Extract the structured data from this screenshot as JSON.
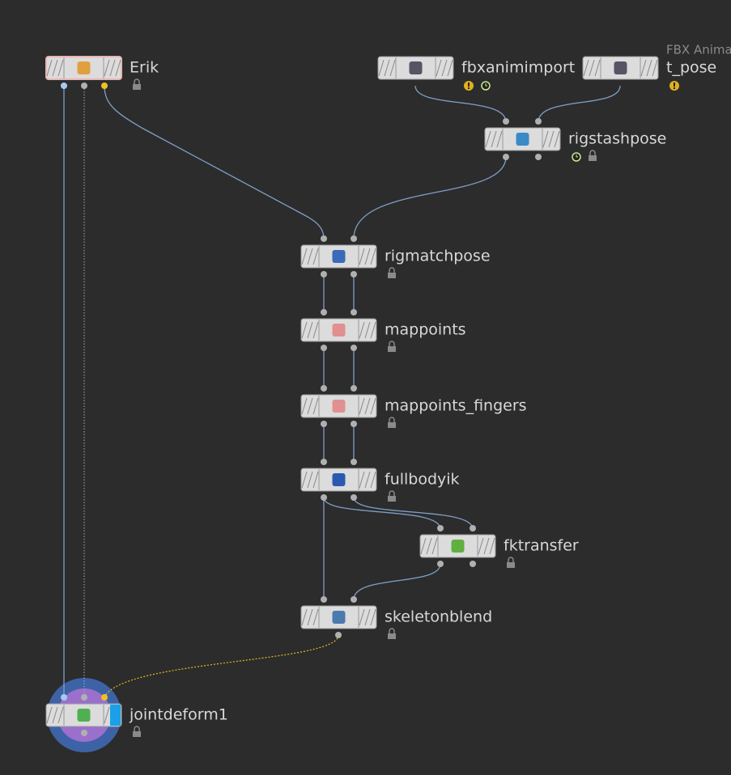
{
  "nodes": [
    {
      "label": "Erik"
    },
    {
      "label": "fbxanimimport"
    },
    {
      "label": "t_pose",
      "comment": "FBX Anima"
    },
    {
      "label": "rigstashpose"
    },
    {
      "label": "rigmatchpose"
    },
    {
      "label": "mappoints"
    },
    {
      "label": "mappoints_fingers"
    },
    {
      "label": "fullbodyik"
    },
    {
      "label": "fktransfer"
    },
    {
      "label": "skeletonblend"
    },
    {
      "label": "jointdeform1"
    }
  ]
}
